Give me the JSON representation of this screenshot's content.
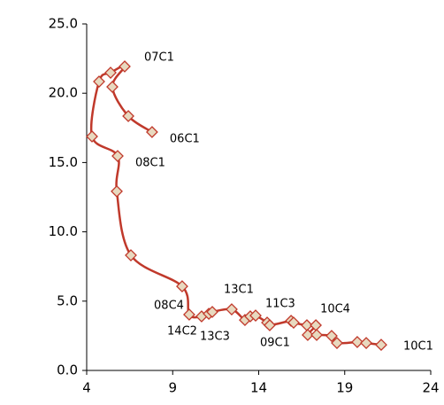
{
  "chart_data": {
    "type": "line",
    "smooth": true,
    "color": "#c0392b",
    "marker_fill": "#e8d9bf",
    "x": [
      7.8,
      6.42,
      5.49,
      6.21,
      5.39,
      4.72,
      4.31,
      5.8,
      5.75,
      6.57,
      9.55,
      9.96,
      10.68,
      11.1,
      11.3,
      12.43,
      13.2,
      13.51,
      13.82,
      14.49,
      14.64,
      15.88,
      16.03,
      16.8,
      17.32,
      16.85,
      17.37,
      18.24,
      18.55,
      19.73,
      20.25,
      21.12
    ],
    "values": [
      17.2,
      18.35,
      20.46,
      21.93,
      21.48,
      20.84,
      16.88,
      15.47,
      12.92,
      8.31,
      6.07,
      4.03,
      3.9,
      4.09,
      4.22,
      4.41,
      3.64,
      3.9,
      3.96,
      3.45,
      3.26,
      3.58,
      3.45,
      3.26,
      3.26,
      2.56,
      2.56,
      2.49,
      1.98,
      2.05,
      1.98,
      1.85
    ],
    "point_labels": [
      "06C1",
      null,
      null,
      "07C1",
      null,
      null,
      null,
      "08C1",
      null,
      null,
      null,
      "08C4",
      "14C2",
      null,
      "13C3",
      "13C1",
      null,
      null,
      null,
      "09C1",
      "11C3",
      null,
      null,
      null,
      "10C4",
      null,
      null,
      null,
      null,
      null,
      null,
      "10C1"
    ],
    "xlim": [
      4,
      24
    ],
    "xticks": [
      4,
      9,
      14,
      19,
      24
    ],
    "ylim": [
      0,
      25
    ],
    "yticks": [
      {
        "value": 0,
        "label": "0.0"
      },
      {
        "value": 5,
        "label": "5.0"
      },
      {
        "value": 10,
        "label": "10.0"
      },
      {
        "value": 15,
        "label": "15.0"
      },
      {
        "value": 20,
        "label": "20.0"
      },
      {
        "value": 25,
        "label": "25.0"
      }
    ]
  }
}
